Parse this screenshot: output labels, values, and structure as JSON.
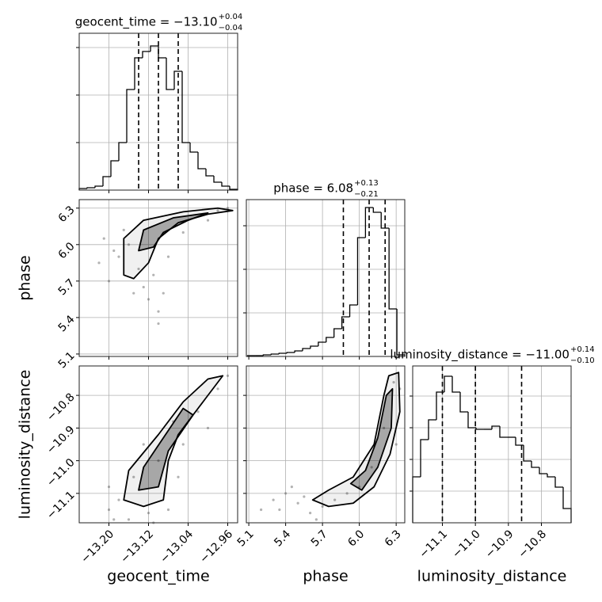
{
  "chart_data": {
    "type": "corner",
    "grid": true,
    "parameters": [
      {
        "label": "geocent_time",
        "title": {
          "text": "geocent_time = −13.10",
          "upper": "+0.04",
          "lower": "−0.04"
        },
        "xlim": [
          -13.26,
          -12.94
        ],
        "ticks": [
          {
            "value": -13.2,
            "label": "−13.20"
          },
          {
            "value": -13.12,
            "label": "−13.12"
          },
          {
            "value": -13.04,
            "label": "−13.04"
          },
          {
            "value": -12.96,
            "label": "−12.96"
          }
        ],
        "quantiles": [
          -13.14,
          -13.1,
          -13.06
        ],
        "bins": [
          -13.26,
          -13.244,
          -13.228,
          -13.212,
          -13.196,
          -13.18,
          -13.164,
          -13.148,
          -13.132,
          -13.116,
          -13.1,
          -13.084,
          -13.068,
          -13.052,
          -13.036,
          -13.02,
          -13.004,
          -12.988,
          -12.972,
          -12.956,
          -12.94
        ],
        "counts": [
          2,
          3,
          5,
          17,
          37,
          60,
          127,
          167,
          175,
          182,
          167,
          127,
          150,
          60,
          48,
          27,
          18,
          10,
          5,
          1
        ],
        "ylim": [
          0,
          198
        ],
        "yticks": [
          60,
          120,
          180
        ]
      },
      {
        "label": "phase",
        "title": {
          "text": "phase = 6.08",
          "upper": "+0.13",
          "lower": "−0.21"
        },
        "xlim": [
          5.08,
          6.37
        ],
        "ticks": [
          5.1,
          5.4,
          5.7,
          {
            "value": 6.0,
            "label": "6.0"
          },
          6.3
        ],
        "quantiles": [
          5.87,
          6.08,
          6.21
        ],
        "bins": [
          5.09,
          5.154,
          5.218,
          5.282,
          5.346,
          5.41,
          5.474,
          5.538,
          5.602,
          5.666,
          5.73,
          5.794,
          5.858,
          5.922,
          5.986,
          6.05,
          6.114,
          6.178,
          6.242,
          6.306,
          6.37
        ],
        "counts": [
          1,
          1,
          2,
          3,
          4,
          5,
          7,
          10,
          13,
          18,
          24,
          35,
          50,
          65,
          150,
          188,
          182,
          162,
          60,
          2
        ],
        "ylim": [
          0,
          198
        ],
        "yticks": [
          55,
          110,
          165
        ]
      },
      {
        "label": "luminosity_distance",
        "title": {
          "text": "luminosity_distance = −11.00",
          "upper": "+0.14",
          "lower": "−0.10"
        },
        "xlim": [
          -11.19,
          -10.71
        ],
        "ticks": [
          {
            "value": -11.1,
            "label": "−11.1"
          },
          {
            "value": -11.0,
            "label": "−11.0"
          },
          {
            "value": -10.9,
            "label": "−10.9"
          },
          {
            "value": -10.8,
            "label": "−10.8"
          }
        ],
        "quantiles": [
          -11.1,
          -11.0,
          -10.86
        ],
        "bins": [
          -11.19,
          -11.166,
          -11.142,
          -11.118,
          -11.094,
          -11.07,
          -11.046,
          -11.022,
          -10.998,
          -10.974,
          -10.95,
          -10.926,
          -10.902,
          -10.878,
          -10.854,
          -10.83,
          -10.806,
          -10.782,
          -10.758,
          -10.734,
          -10.71
        ],
        "counts": [
          58,
          105,
          130,
          165,
          185,
          165,
          140,
          120,
          118,
          118,
          122,
          108,
          108,
          98,
          78,
          70,
          62,
          58,
          45,
          18
        ],
        "ylim": [
          0,
          198
        ],
        "yticks": [
          40,
          80,
          120,
          160
        ]
      }
    ],
    "pairs": [
      {
        "samples": {
          "x": [
            -13.18,
            -13.2,
            -13.15,
            -13.12,
            -13.1,
            -13.13,
            -13.16,
            -13.19,
            -13.14,
            -13.11,
            -13.08,
            -13.05,
            -13.0,
            -12.96,
            -12.98,
            -13.22,
            -13.21,
            -13.1,
            -13.09,
            -13.17
          ],
          "y": [
            5.9,
            5.7,
            5.6,
            5.55,
            5.45,
            5.65,
            6.0,
            5.95,
            5.8,
            5.75,
            5.9,
            6.1,
            6.2,
            6.3,
            6.28,
            5.85,
            6.05,
            5.35,
            5.6,
            6.12
          ]
        },
        "contours": [
          {
            "x": [
              -13.17,
              -13.17,
              -13.13,
              -13.05,
              -12.98,
              -12.95,
              -13.0,
              -13.06,
              -13.1,
              -13.12,
              -13.15
            ],
            "y": [
              5.75,
              6.05,
              6.2,
              6.27,
              6.3,
              6.28,
              6.25,
              6.18,
              6.05,
              5.85,
              5.72
            ]
          },
          {
            "x": [
              -13.14,
              -13.13,
              -13.07,
              -13.0,
              -13.04,
              -13.09,
              -13.11
            ],
            "y": [
              5.95,
              6.12,
              6.22,
              6.26,
              6.2,
              6.1,
              5.98
            ]
          }
        ]
      },
      {
        "samples": {
          "x": [
            -13.18,
            -13.2,
            -13.16,
            -13.12,
            -13.08,
            -13.05,
            -13.02,
            -12.98,
            -12.96,
            -13.1,
            -13.15,
            -13.13,
            -13.06,
            -13.2,
            -13.0,
            -13.19,
            -13.11,
            -13.07
          ],
          "y": [
            -11.12,
            -11.15,
            -11.18,
            -11.16,
            -11.15,
            -10.95,
            -10.85,
            -10.78,
            -10.74,
            -11.0,
            -11.05,
            -10.95,
            -11.05,
            -11.08,
            -10.9,
            -11.18,
            -11.19,
            -10.88
          ]
        },
        "contours": [
          {
            "x": [
              -13.17,
              -13.16,
              -13.1,
              -13.05,
              -13.0,
              -12.97,
              -13.0,
              -13.06,
              -13.08,
              -13.09,
              -13.13
            ],
            "y": [
              -11.12,
              -11.03,
              -10.92,
              -10.82,
              -10.75,
              -10.74,
              -10.8,
              -10.92,
              -11.0,
              -11.12,
              -11.14
            ]
          },
          {
            "x": [
              -13.14,
              -13.13,
              -13.09,
              -13.05,
              -13.03,
              -13.08,
              -13.1
            ],
            "y": [
              -11.09,
              -11.02,
              -10.93,
              -10.84,
              -10.86,
              -10.97,
              -11.08
            ]
          }
        ]
      },
      {
        "samples": {
          "x": [
            5.3,
            5.2,
            5.4,
            5.5,
            5.6,
            5.7,
            5.8,
            5.45,
            5.55,
            5.9,
            6.0,
            6.1,
            6.2,
            6.28,
            6.33,
            5.35,
            5.65,
            6.3
          ],
          "y": [
            -11.12,
            -11.15,
            -11.1,
            -11.13,
            -11.16,
            -11.14,
            -11.12,
            -11.08,
            -11.11,
            -11.1,
            -11.08,
            -11.02,
            -10.9,
            -10.76,
            -10.78,
            -11.15,
            -11.18,
            -10.95
          ]
        },
        "contours": [
          {
            "x": [
              5.62,
              5.75,
              5.95,
              6.12,
              6.2,
              6.24,
              6.32,
              6.33,
              6.25,
              6.12,
              5.95,
              5.75
            ],
            "y": [
              -11.12,
              -11.09,
              -11.05,
              -10.95,
              -10.8,
              -10.74,
              -10.73,
              -10.85,
              -10.98,
              -11.08,
              -11.13,
              -11.14
            ]
          },
          {
            "x": [
              5.93,
              6.05,
              6.15,
              6.22,
              6.27,
              6.26,
              6.15,
              6.02
            ],
            "y": [
              -11.07,
              -11.03,
              -10.93,
              -10.8,
              -10.78,
              -10.9,
              -11.02,
              -11.09
            ]
          }
        ]
      }
    ]
  }
}
